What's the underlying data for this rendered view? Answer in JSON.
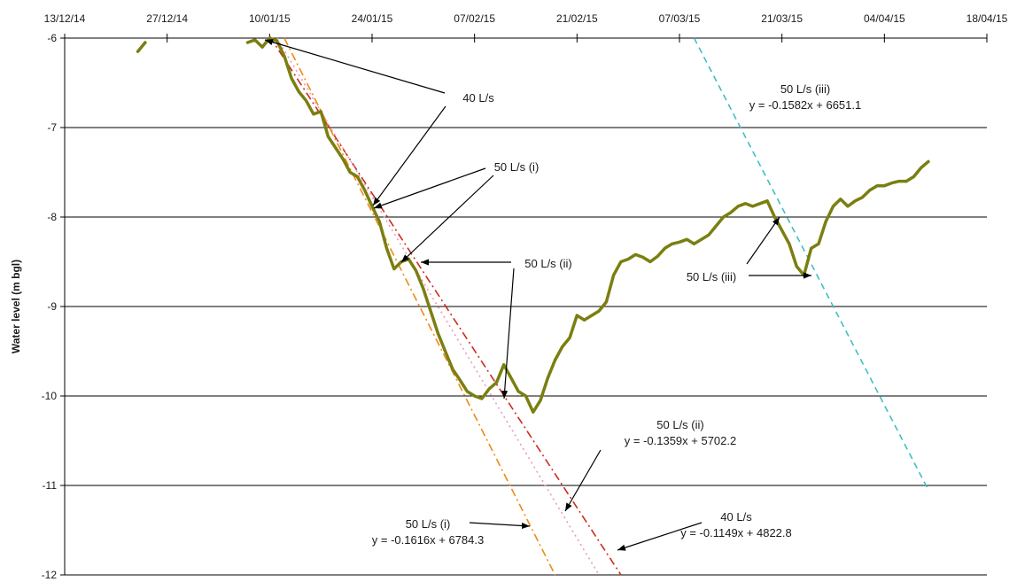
{
  "chart_data": {
    "type": "line",
    "title": "",
    "xlabel": "",
    "ylabel": "Water level (m bgl)",
    "x_axis_position": "top",
    "xlim": [
      "13/12/14",
      "18/04/15"
    ],
    "ylim": [
      -12,
      -6
    ],
    "x_tick_labels": [
      "13/12/14",
      "27/12/14",
      "10/01/15",
      "24/01/15",
      "07/02/15",
      "21/02/15",
      "07/03/15",
      "21/03/15",
      "04/04/15",
      "18/04/15"
    ],
    "y_tick_labels": [
      "-6",
      "-7",
      "-8",
      "-9",
      "-10",
      "-11",
      "-12"
    ],
    "grid": "horizontal",
    "legend": "none",
    "series": [
      {
        "color": "#7a7f10",
        "segments": [
          [
            [
              "23/12/14",
              -6.15
            ],
            [
              "24/12/14",
              -6.05
            ]
          ],
          [
            [
              "07/01/15",
              -6.05
            ],
            [
              "08/01/15",
              -6.02
            ],
            [
              "09/01/15",
              -6.1
            ],
            [
              "10/01/15",
              -6.0
            ],
            [
              "11/01/15",
              -6.03
            ],
            [
              "12/01/15",
              -6.2
            ],
            [
              "13/01/15",
              -6.45
            ],
            [
              "14/01/15",
              -6.6
            ],
            [
              "15/01/15",
              -6.7
            ],
            [
              "16/01/15",
              -6.85
            ],
            [
              "17/01/15",
              -6.82
            ],
            [
              "18/01/15",
              -7.1
            ],
            [
              "20/01/15",
              -7.35
            ],
            [
              "21/01/15",
              -7.5
            ],
            [
              "22/01/15",
              -7.55
            ],
            [
              "23/01/15",
              -7.7
            ],
            [
              "24/01/15",
              -7.88
            ],
            [
              "25/01/15",
              -8.05
            ],
            [
              "26/01/15",
              -8.35
            ],
            [
              "27/01/15",
              -8.58
            ],
            [
              "28/01/15",
              -8.5
            ],
            [
              "29/01/15",
              -8.47
            ],
            [
              "30/01/15",
              -8.6
            ],
            [
              "31/01/15",
              -8.8
            ],
            [
              "01/02/15",
              -9.05
            ],
            [
              "02/02/15",
              -9.3
            ],
            [
              "03/02/15",
              -9.5
            ],
            [
              "04/02/15",
              -9.7
            ],
            [
              "05/02/15",
              -9.82
            ],
            [
              "06/02/15",
              -9.95
            ],
            [
              "07/02/15",
              -10.0
            ],
            [
              "08/02/15",
              -10.03
            ],
            [
              "09/02/15",
              -9.92
            ],
            [
              "10/02/15",
              -9.85
            ],
            [
              "11/02/15",
              -9.65
            ],
            [
              "12/02/15",
              -9.8
            ],
            [
              "13/02/15",
              -9.95
            ],
            [
              "14/02/15",
              -10.0
            ],
            [
              "15/02/15",
              -10.18
            ],
            [
              "16/02/15",
              -10.05
            ],
            [
              "17/02/15",
              -9.8
            ],
            [
              "18/02/15",
              -9.6
            ],
            [
              "19/02/15",
              -9.45
            ],
            [
              "20/02/15",
              -9.35
            ],
            [
              "21/02/15",
              -9.1
            ],
            [
              "22/02/15",
              -9.15
            ],
            [
              "23/02/15",
              -9.1
            ],
            [
              "24/02/15",
              -9.05
            ],
            [
              "25/02/15",
              -8.95
            ],
            [
              "26/02/15",
              -8.65
            ],
            [
              "27/02/15",
              -8.5
            ],
            [
              "28/02/15",
              -8.47
            ],
            [
              "01/03/15",
              -8.42
            ],
            [
              "02/03/15",
              -8.45
            ],
            [
              "03/03/15",
              -8.5
            ],
            [
              "04/03/15",
              -8.44
            ],
            [
              "05/03/15",
              -8.35
            ],
            [
              "06/03/15",
              -8.3
            ],
            [
              "07/03/15",
              -8.28
            ],
            [
              "08/03/15",
              -8.25
            ],
            [
              "09/03/15",
              -8.3
            ],
            [
              "10/03/15",
              -8.25
            ],
            [
              "11/03/15",
              -8.2
            ],
            [
              "12/03/15",
              -8.1
            ],
            [
              "13/03/15",
              -8.0
            ],
            [
              "14/03/15",
              -7.95
            ],
            [
              "15/03/15",
              -7.88
            ],
            [
              "16/03/15",
              -7.85
            ],
            [
              "17/03/15",
              -7.88
            ],
            [
              "18/03/15",
              -7.85
            ],
            [
              "19/03/15",
              -7.82
            ],
            [
              "20/03/15",
              -8.0
            ],
            [
              "21/03/15",
              -8.15
            ],
            [
              "22/03/15",
              -8.3
            ],
            [
              "23/03/15",
              -8.55
            ],
            [
              "24/03/15",
              -8.65
            ],
            [
              "25/03/15",
              -8.35
            ],
            [
              "26/03/15",
              -8.3
            ],
            [
              "27/03/15",
              -8.05
            ],
            [
              "28/03/15",
              -7.88
            ],
            [
              "29/03/15",
              -7.8
            ],
            [
              "30/03/15",
              -7.88
            ],
            [
              "31/03/15",
              -7.82
            ],
            [
              "01/04/15",
              -7.78
            ],
            [
              "02/04/15",
              -7.7
            ],
            [
              "03/04/15",
              -7.65
            ],
            [
              "04/04/15",
              -7.65
            ],
            [
              "05/04/15",
              -7.62
            ],
            [
              "06/04/15",
              -7.6
            ],
            [
              "07/04/15",
              -7.6
            ],
            [
              "08/04/15",
              -7.55
            ],
            [
              "09/04/15",
              -7.45
            ],
            [
              "10/04/15",
              -7.38
            ]
          ]
        ]
      }
    ],
    "trendlines": [
      {
        "label": "40 L/s",
        "equation": "y = -0.1149x + 4822.8",
        "color": "#cc2b1d",
        "style": "dash-dot",
        "from": [
          "10/01/15",
          -5.98
        ],
        "to": [
          "27/02/15",
          -12.0
        ]
      },
      {
        "label": "50 L/s (i)",
        "equation": "y = -0.1616x + 6784.3",
        "color": "#ee8a12",
        "style": "dash-dot",
        "from": [
          "12/01/15",
          -6.0
        ],
        "to": [
          "18/02/15",
          -12.0
        ]
      },
      {
        "label": "50 L/s (ii)",
        "equation": "y = -0.1359x + 5702.2",
        "color": "#e89bb8",
        "style": "dotted",
        "from": [
          "11/01/15",
          -6.0
        ],
        "to": [
          "24/02/15",
          -12.0
        ]
      },
      {
        "label": "50 L/s (iii)",
        "equation": "y = -0.1582x + 6651.1",
        "color": "#3fbfc4",
        "style": "dashed",
        "from": [
          "09/03/15",
          -6.0
        ],
        "to": [
          "10/04/15",
          -11.05
        ]
      }
    ],
    "annotations": [
      {
        "lines": [
          "40 L/s"
        ]
      },
      {
        "lines": [
          "50 L/s (i)"
        ]
      },
      {
        "lines": [
          "50 L/s (ii)"
        ]
      },
      {
        "lines": [
          "50 L/s (iii)",
          "y = -0.1582x + 6651.1"
        ]
      },
      {
        "lines": [
          "50 L/s (iii)"
        ]
      },
      {
        "lines": [
          "50 L/s (ii)",
          "y = -0.1359x + 5702.2"
        ]
      },
      {
        "lines": [
          "50 L/s (i)",
          "y = -0.1616x + 6784.3"
        ]
      },
      {
        "lines": [
          "40 L/s",
          "y = -0.1149x + 4822.8"
        ]
      }
    ]
  }
}
